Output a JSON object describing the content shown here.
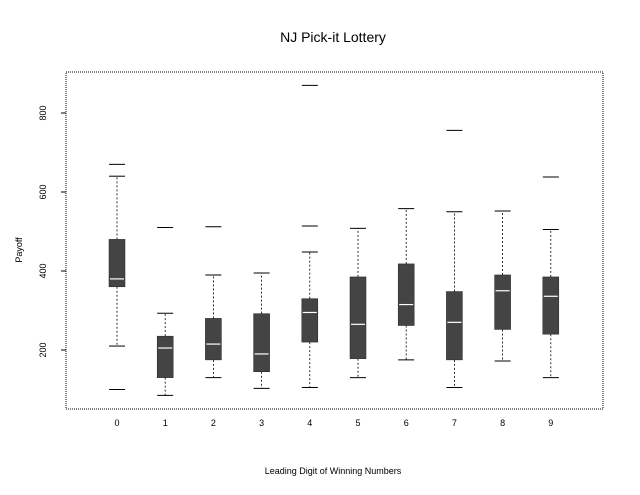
{
  "chart_data": {
    "type": "box",
    "title": "NJ Pick-it Lottery",
    "xlabel": "Leading Digit of Winning Numbers",
    "ylabel": "Payoff",
    "ylim": [
      50,
      900
    ],
    "yticks": [
      200,
      400,
      600,
      800
    ],
    "categories": [
      "0",
      "1",
      "2",
      "3",
      "4",
      "5",
      "6",
      "7",
      "8",
      "9"
    ],
    "boxes": [
      {
        "category": "0",
        "whisker_low": 210,
        "q1": 360,
        "median": 380,
        "q3": 480,
        "whisker_high": 640,
        "outliers": [
          100,
          670
        ]
      },
      {
        "category": "1",
        "whisker_low": 85,
        "q1": 130,
        "median": 205,
        "q3": 235,
        "whisker_high": 293,
        "outliers": [
          510
        ]
      },
      {
        "category": "2",
        "whisker_low": 130,
        "q1": 175,
        "median": 215,
        "q3": 280,
        "whisker_high": 390,
        "outliers": [
          512
        ]
      },
      {
        "category": "3",
        "whisker_low": 103,
        "q1": 145,
        "median": 190,
        "q3": 292,
        "whisker_high": 395,
        "outliers": []
      },
      {
        "category": "4",
        "whisker_low": 105,
        "q1": 220,
        "median": 295,
        "q3": 330,
        "whisker_high": 448,
        "outliers": [
          514,
          870
        ]
      },
      {
        "category": "5",
        "whisker_low": 130,
        "q1": 178,
        "median": 265,
        "q3": 385,
        "whisker_high": 508,
        "outliers": []
      },
      {
        "category": "6",
        "whisker_low": 175,
        "q1": 262,
        "median": 315,
        "q3": 418,
        "whisker_high": 558,
        "outliers": []
      },
      {
        "category": "7",
        "whisker_low": 105,
        "q1": 175,
        "median": 270,
        "q3": 348,
        "whisker_high": 550,
        "outliers": [
          756
        ]
      },
      {
        "category": "8",
        "whisker_low": 172,
        "q1": 252,
        "median": 350,
        "q3": 390,
        "whisker_high": 552,
        "outliers": []
      },
      {
        "category": "9",
        "whisker_low": 130,
        "q1": 240,
        "median": 336,
        "q3": 385,
        "whisker_high": 505,
        "outliers": [
          638
        ]
      }
    ],
    "grid": false,
    "colors": {
      "box_fill": "#444444",
      "median_line": "#ffffff",
      "axis": "#000000"
    }
  }
}
